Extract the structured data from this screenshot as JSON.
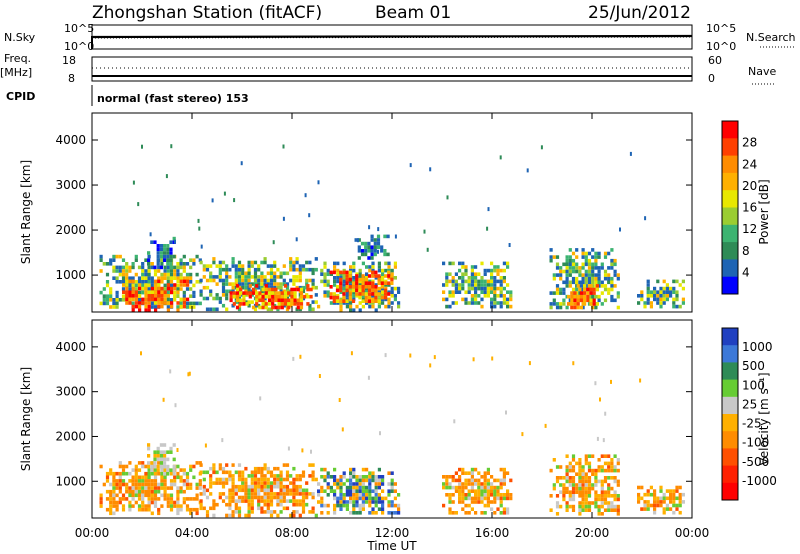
{
  "chart_data": {
    "type": "heatmap",
    "header": {
      "title": "Zhongshan Station (fitACF)",
      "beam": "Beam 01",
      "date": "25/Jun/2012",
      "nsky_label": "N.Sky",
      "nsearch_label": "N.Search",
      "freq_label_line1": "Freq.",
      "freq_label_line2": "[MHz]",
      "nave_label": "Nave",
      "cpid_label": "CPID",
      "cpid_text": "normal (fast stereo) 153",
      "noise_ticks_left": [
        "10^5",
        "10^0"
      ],
      "noise_ticks_right": [
        "10^5",
        "10^0"
      ],
      "freq_ticks_left": [
        "18",
        "8"
      ],
      "nave_ticks_right": [
        "60",
        "0"
      ]
    },
    "x": {
      "label": "Time UT",
      "range_hours": [
        0,
        24
      ],
      "tick_hours": [
        0,
        4,
        8,
        12,
        16,
        20,
        24
      ],
      "tick_labels": [
        "00:00",
        "04:00",
        "08:00",
        "12:00",
        "16:00",
        "20:00",
        "00:00"
      ]
    },
    "y": {
      "label": "Slant Range [km]",
      "range_km": [
        180,
        4600
      ],
      "ticks": [
        1000,
        2000,
        3000,
        4000
      ],
      "tick_labels": [
        "1000",
        "2000",
        "3000",
        "4000"
      ]
    },
    "panels": [
      {
        "name": "power",
        "colorbar_label": "Power [dB]",
        "colorbar_ticks": [
          "28",
          "24",
          "20",
          "16",
          "12",
          "8",
          "4"
        ],
        "colorbar_colors": [
          "#ff0000",
          "#ff4000",
          "#ff8c00",
          "#ffb000",
          "#e8e800",
          "#9acd32",
          "#3cb371",
          "#2e8b57",
          "#1e64b4",
          "#0000ff"
        ],
        "regions": [
          {
            "t": [
              0.3,
              4.3
            ],
            "r": [
              280,
              1450
            ],
            "level": "mixed"
          },
          {
            "t": [
              1.2,
              3.8
            ],
            "r": [
              260,
              900
            ],
            "level": "high"
          },
          {
            "t": [
              2.2,
              3.3
            ],
            "r": [
              1200,
              1850
            ],
            "level": "low"
          },
          {
            "t": [
              4.3,
              9.0
            ],
            "r": [
              250,
              1400
            ],
            "level": "mixed"
          },
          {
            "t": [
              5.5,
              8.8
            ],
            "r": [
              280,
              800
            ],
            "level": "high"
          },
          {
            "t": [
              9.0,
              12.3
            ],
            "r": [
              260,
              1300
            ],
            "level": "mixed"
          },
          {
            "t": [
              9.5,
              12.0
            ],
            "r": [
              400,
              1100
            ],
            "level": "high"
          },
          {
            "t": [
              10.5,
              11.8
            ],
            "r": [
              1400,
              1900
            ],
            "level": "low"
          },
          {
            "t": [
              14.0,
              16.8
            ],
            "r": [
              300,
              1300
            ],
            "level": "mixed"
          },
          {
            "t": [
              18.3,
              21.0
            ],
            "r": [
              250,
              1600
            ],
            "level": "mixed"
          },
          {
            "t": [
              19.0,
              20.2
            ],
            "r": [
              300,
              800
            ],
            "level": "high"
          },
          {
            "t": [
              21.8,
              23.6
            ],
            "r": [
              300,
              900
            ],
            "level": "mixed"
          }
        ]
      },
      {
        "name": "velocity",
        "colorbar_label": "Velocity [m s⁻¹]",
        "colorbar_ticks": [
          "1000",
          "500",
          "100",
          "25",
          "-25",
          "-100",
          "-500",
          "-1000"
        ],
        "colorbar_colors": [
          "#2040c0",
          "#3c78d8",
          "#2e8b57",
          "#66cc33",
          "#c8c8c8",
          "#ffb000",
          "#ff8c00",
          "#ff5000",
          "#ff2000",
          "#ff0000"
        ],
        "regions": [
          {
            "t": [
              0.3,
              4.3
            ],
            "r": [
              280,
              1450
            ],
            "level": "neg"
          },
          {
            "t": [
              2.2,
              3.3
            ],
            "r": [
              1200,
              1850
            ],
            "level": "grey"
          },
          {
            "t": [
              4.3,
              9.0
            ],
            "r": [
              250,
              1400
            ],
            "level": "neg"
          },
          {
            "t": [
              9.0,
              12.3
            ],
            "r": [
              260,
              1300
            ],
            "level": "mixed"
          },
          {
            "t": [
              14.0,
              16.8
            ],
            "r": [
              300,
              1300
            ],
            "level": "neg"
          },
          {
            "t": [
              18.3,
              21.0
            ],
            "r": [
              250,
              1600
            ],
            "level": "neg"
          },
          {
            "t": [
              21.8,
              23.6
            ],
            "r": [
              300,
              900
            ],
            "level": "neg"
          }
        ]
      }
    ]
  }
}
